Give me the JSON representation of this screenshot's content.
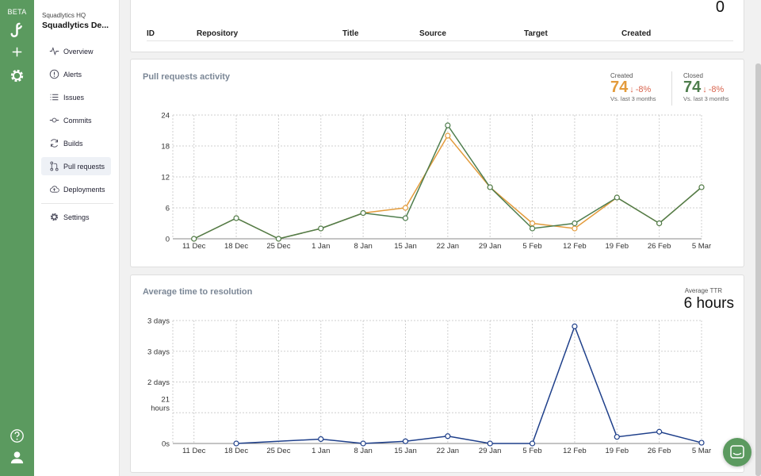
{
  "rail": {
    "beta_label": "BETA",
    "icons": [
      "logo-icon",
      "plus-icon",
      "gear-icon",
      "help-icon",
      "user-icon"
    ]
  },
  "sidebar": {
    "org_small": "Squadlytics HQ",
    "org_big": "Squadlytics De...",
    "items": [
      {
        "label": "Overview",
        "icon": "pulse-icon"
      },
      {
        "label": "Alerts",
        "icon": "alert-icon"
      },
      {
        "label": "Issues",
        "icon": "list-icon"
      },
      {
        "label": "Commits",
        "icon": "commit-icon"
      },
      {
        "label": "Builds",
        "icon": "refresh-icon"
      },
      {
        "label": "Pull requests",
        "icon": "pull-request-icon"
      },
      {
        "label": "Deployments",
        "icon": "cloud-icon"
      },
      {
        "label": "Settings",
        "icon": "gear-icon"
      }
    ],
    "active": "Pull requests"
  },
  "pr_table": {
    "count": "0",
    "columns": [
      "ID",
      "Repository",
      "Title",
      "Source",
      "Target",
      "Created"
    ]
  },
  "activity": {
    "title": "Pull requests activity",
    "created": {
      "label": "Created",
      "value": "74",
      "delta": "-8%",
      "sub": "Vs. last 3 months",
      "color": "#e39b3b"
    },
    "closed": {
      "label": "Closed",
      "value": "74",
      "delta": "-8%",
      "sub": "Vs. last 3 months",
      "color": "#4e7d4d"
    }
  },
  "ttr": {
    "title": "Average time to resolution",
    "avg_label": "Average TTR",
    "avg_value": "6 hours"
  },
  "colors": {
    "accent": "#5b9a5f",
    "created": "#e39b3b",
    "closed": "#4e7d4d",
    "ttr": "#1e3f8a",
    "delta": "#d9654f"
  },
  "chart_data": [
    {
      "type": "line",
      "title": "Pull requests activity",
      "categories": [
        "11 Dec",
        "18 Dec",
        "25 Dec",
        "1 Jan",
        "8 Jan",
        "15 Jan",
        "22 Jan",
        "29 Jan",
        "5 Feb",
        "12 Feb",
        "19 Feb",
        "26 Feb",
        "5 Mar"
      ],
      "y_ticks": [
        "0",
        "6",
        "12",
        "18",
        "24"
      ],
      "ylim": [
        0,
        24
      ],
      "grid": true,
      "series": [
        {
          "name": "Created",
          "color": "#e39b3b",
          "values": [
            0,
            4,
            0,
            2,
            5,
            6,
            20,
            10,
            3,
            2,
            8,
            3,
            10
          ]
        },
        {
          "name": "Closed",
          "color": "#4e7d4d",
          "values": [
            0,
            4,
            0,
            2,
            5,
            4,
            22,
            10,
            2,
            3,
            8,
            3,
            10
          ]
        }
      ]
    },
    {
      "type": "line",
      "title": "Average time to resolution",
      "categories": [
        "11 Dec",
        "18 Dec",
        "25 Dec",
        "1 Jan",
        "8 Jan",
        "15 Jan",
        "22 Jan",
        "29 Jan",
        "5 Feb",
        "12 Feb",
        "19 Feb",
        "26 Feb",
        "5 Mar"
      ],
      "y_tick_labels": [
        "0s",
        "21 hours",
        "2 days",
        "3 days",
        "3 days"
      ],
      "y_unit": "hours",
      "ylim": [
        0,
        84
      ],
      "grid": true,
      "series": [
        {
          "name": "",
          "color": "#1e3f8a",
          "values": [
            null,
            0,
            null,
            3,
            0,
            1.5,
            5,
            0,
            0,
            80,
            4.5,
            8,
            0.5
          ]
        }
      ]
    }
  ]
}
